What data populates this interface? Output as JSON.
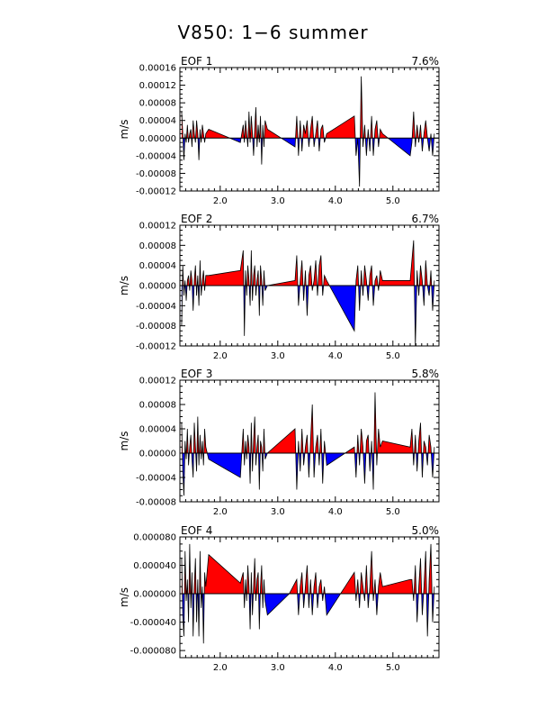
{
  "title": "V850: 1−6 summer",
  "colors": {
    "positive": "#ff0000",
    "negative": "#0000ff",
    "line": "#000000"
  },
  "chart_data": [
    {
      "type": "area",
      "panel_label": "EOF 1",
      "variance": "7.6%",
      "ylabel": "m/s",
      "xlim": [
        1.3,
        5.8
      ],
      "ylim": [
        -0.00012,
        0.00016
      ],
      "yticks": [
        -0.00012,
        -8e-05,
        -4e-05,
        0.0,
        4e-05,
        8e-05,
        0.00012,
        0.00016
      ],
      "ytick_labels": [
        "-0.00012",
        "-0.00008",
        "-0.00004",
        "0.00000",
        "0.00004",
        "0.00008",
        "0.00012",
        "0.00016"
      ],
      "xticks": [
        2.0,
        3.0,
        4.0,
        5.0
      ],
      "xtick_labels": [
        "2.0",
        "3.0",
        "4.0",
        "5.0"
      ],
      "x": [
        1.33,
        1.35,
        1.37,
        1.39,
        1.41,
        1.43,
        1.45,
        1.47,
        1.49,
        1.51,
        1.53,
        1.55,
        1.57,
        1.59,
        1.61,
        1.63,
        1.65,
        1.67,
        1.69,
        1.71,
        1.73,
        1.75,
        1.8,
        2.35,
        2.4,
        2.42,
        2.44,
        2.46,
        2.48,
        2.5,
        2.52,
        2.54,
        2.56,
        2.58,
        2.6,
        2.62,
        2.64,
        2.66,
        2.68,
        2.7,
        2.72,
        2.74,
        2.76,
        2.78,
        2.82,
        3.3,
        3.33,
        3.36,
        3.39,
        3.42,
        3.45,
        3.48,
        3.51,
        3.54,
        3.57,
        3.6,
        3.63,
        3.66,
        3.69,
        3.72,
        3.75,
        3.78,
        3.81,
        3.85,
        4.33,
        4.36,
        4.39,
        4.42,
        4.45,
        4.48,
        4.51,
        4.54,
        4.57,
        4.6,
        4.63,
        4.66,
        4.69,
        4.72,
        4.75,
        4.78,
        4.82,
        5.3,
        5.33,
        5.36,
        5.39,
        5.42,
        5.45,
        5.48,
        5.51,
        5.54,
        5.57,
        5.6,
        5.63,
        5.66,
        5.69,
        5.72
      ],
      "values": [
        6e-05,
        1e-05,
        -5e-05,
        1e-05,
        -1e-05,
        3e-05,
        -1e-05,
        1e-05,
        2e-05,
        -2e-05,
        4e-05,
        1e-05,
        -1e-05,
        4e-05,
        1e-05,
        -5e-05,
        2e-05,
        -1e-05,
        3e-05,
        1e-05,
        -1e-05,
        1e-05,
        2e-05,
        -1e-05,
        3e-05,
        -1e-05,
        4e-05,
        1e-05,
        -2e-05,
        6e-05,
        -1e-05,
        5e-05,
        1e-05,
        -4e-05,
        2e-05,
        7e-05,
        -2e-05,
        3e-05,
        -1e-05,
        5e-05,
        -6e-05,
        3e-05,
        -2e-05,
        4e-05,
        2e-05,
        -2e-05,
        5e-05,
        -4e-05,
        4e-05,
        -3e-05,
        3e-05,
        1e-05,
        4e-05,
        -2e-05,
        2e-05,
        5e-05,
        -2e-05,
        1e-05,
        4e-05,
        -3e-05,
        2e-05,
        3e-05,
        -1e-05,
        1e-05,
        5e-05,
        -4e-05,
        0.0,
        -0.00011,
        0.00014,
        -2e-05,
        3e-05,
        -4e-05,
        2e-05,
        -3e-05,
        5e-05,
        -4e-05,
        2e-05,
        4e-05,
        -2e-05,
        2e-05,
        1e-05,
        -4e-05,
        -1e-05,
        6e-05,
        -2e-05,
        3e-05,
        -1e-05,
        3e-05,
        -3e-05,
        1e-05,
        4e-05,
        0.0,
        -3e-05,
        1e-05,
        -4e-05,
        1e-05
      ]
    },
    {
      "type": "area",
      "panel_label": "EOF 2",
      "variance": "6.7%",
      "ylabel": "m/s",
      "xlim": [
        1.3,
        5.8
      ],
      "ylim": [
        -0.00012,
        0.00012
      ],
      "yticks": [
        -0.00012,
        -8e-05,
        -4e-05,
        0.0,
        4e-05,
        8e-05,
        0.00012
      ],
      "ytick_labels": [
        "-0.00012",
        "-0.00008",
        "-0.00004",
        "0.00000",
        "0.00004",
        "0.00008",
        "0.00012"
      ],
      "xticks": [
        2.0,
        3.0,
        4.0,
        5.0
      ],
      "xtick_labels": [
        "2.0",
        "3.0",
        "4.0",
        "5.0"
      ],
      "x": [
        1.33,
        1.35,
        1.37,
        1.39,
        1.41,
        1.43,
        1.45,
        1.47,
        1.49,
        1.51,
        1.53,
        1.55,
        1.57,
        1.59,
        1.61,
        1.63,
        1.65,
        1.67,
        1.69,
        1.71,
        1.73,
        1.75,
        1.8,
        2.35,
        2.4,
        2.42,
        2.44,
        2.46,
        2.48,
        2.5,
        2.52,
        2.54,
        2.56,
        2.58,
        2.6,
        2.62,
        2.64,
        2.66,
        2.68,
        2.7,
        2.72,
        2.74,
        2.76,
        2.78,
        2.82,
        3.3,
        3.33,
        3.36,
        3.39,
        3.42,
        3.45,
        3.48,
        3.51,
        3.54,
        3.57,
        3.6,
        3.63,
        3.66,
        3.69,
        3.72,
        3.75,
        3.78,
        3.81,
        3.85,
        4.33,
        4.36,
        4.39,
        4.42,
        4.45,
        4.48,
        4.51,
        4.54,
        4.57,
        4.6,
        4.63,
        4.66,
        4.69,
        4.72,
        4.75,
        4.78,
        4.82,
        5.3,
        5.33,
        5.36,
        5.39,
        5.42,
        5.45,
        5.48,
        5.51,
        5.54,
        5.57,
        5.6,
        5.63,
        5.66,
        5.69,
        5.72
      ],
      "values": [
        -8e-05,
        4e-05,
        -2e-05,
        1e-05,
        -3e-05,
        1e-05,
        2e-05,
        -1e-05,
        3e-05,
        1e-05,
        -5e-05,
        1e-05,
        4e-05,
        -2e-05,
        2e-05,
        -4e-05,
        5e-05,
        -2e-05,
        1e-05,
        3e-05,
        -1e-05,
        2e-05,
        2e-05,
        3e-05,
        7e-05,
        -0.0001,
        3e-05,
        -2e-05,
        4e-05,
        1e-05,
        -4e-05,
        7e-05,
        -3e-05,
        2e-05,
        4e-05,
        -2e-05,
        1e-05,
        3e-05,
        -6e-05,
        4e-05,
        1e-05,
        -4e-05,
        3e-05,
        -1e-05,
        0.0,
        1e-05,
        6e-05,
        -4e-05,
        1e-05,
        5e-05,
        -3e-05,
        3e-05,
        -6e-05,
        2e-05,
        4e-05,
        -1e-05,
        1e-05,
        5e-05,
        -2e-05,
        4e-05,
        6e-05,
        -2e-05,
        2e-05,
        1e-05,
        -9e-05,
        1e-05,
        4e-05,
        -5e-05,
        3e-05,
        -2e-05,
        4e-05,
        1e-05,
        -3e-05,
        2e-05,
        4e-05,
        -4e-05,
        1e-05,
        2e-05,
        -1e-05,
        3e-05,
        1e-05,
        1e-05,
        5e-05,
        9e-05,
        -0.00012,
        3e-05,
        -2e-05,
        4e-05,
        1e-05,
        -4e-05,
        5e-05,
        0.0,
        -2e-05,
        3e-05,
        -5e-05,
        1e-05
      ]
    },
    {
      "type": "area",
      "panel_label": "EOF 3",
      "variance": "5.8%",
      "ylabel": "m/s",
      "xlim": [
        1.3,
        5.8
      ],
      "ylim": [
        -8e-05,
        0.00012
      ],
      "yticks": [
        -8e-05,
        -4e-05,
        0.0,
        4e-05,
        8e-05,
        0.00012
      ],
      "ytick_labels": [
        "-0.00008",
        "-0.00004",
        "0.00000",
        "0.00004",
        "0.00008",
        "0.00012"
      ],
      "xticks": [
        2.0,
        3.0,
        4.0,
        5.0
      ],
      "xtick_labels": [
        "2.0",
        "3.0",
        "4.0",
        "5.0"
      ],
      "x": [
        1.33,
        1.35,
        1.37,
        1.39,
        1.41,
        1.43,
        1.45,
        1.47,
        1.49,
        1.51,
        1.53,
        1.55,
        1.57,
        1.59,
        1.61,
        1.63,
        1.65,
        1.67,
        1.69,
        1.71,
        1.73,
        1.75,
        1.8,
        2.35,
        2.4,
        2.42,
        2.44,
        2.46,
        2.48,
        2.5,
        2.52,
        2.54,
        2.56,
        2.58,
        2.6,
        2.62,
        2.64,
        2.66,
        2.68,
        2.7,
        2.72,
        2.74,
        2.76,
        2.78,
        2.82,
        3.3,
        3.33,
        3.36,
        3.39,
        3.42,
        3.45,
        3.48,
        3.51,
        3.54,
        3.57,
        3.6,
        3.63,
        3.66,
        3.69,
        3.72,
        3.75,
        3.78,
        3.81,
        3.85,
        4.33,
        4.36,
        4.39,
        4.42,
        4.45,
        4.48,
        4.51,
        4.54,
        4.57,
        4.6,
        4.63,
        4.66,
        4.69,
        4.72,
        4.75,
        4.78,
        4.82,
        5.3,
        5.33,
        5.36,
        5.39,
        5.42,
        5.45,
        5.48,
        5.51,
        5.54,
        5.57,
        5.6,
        5.63,
        5.66,
        5.69,
        5.72
      ],
      "values": [
        5e-05,
        -3e-05,
        -7e-05,
        2e-05,
        -1e-05,
        4e-05,
        -2e-05,
        1e-05,
        3e-05,
        -1e-05,
        -4e-05,
        5e-05,
        1e-05,
        -3e-05,
        6e-05,
        -2e-05,
        3e-05,
        -1e-05,
        2e-05,
        -2e-05,
        4e-05,
        1e-05,
        -1e-05,
        -4e-05,
        4e-05,
        -2e-05,
        2e-05,
        -1e-05,
        3e-05,
        1e-05,
        -5e-05,
        5e-05,
        -3e-05,
        2e-05,
        6e-05,
        -2e-05,
        1e-05,
        3e-05,
        -6e-05,
        2e-05,
        1e-05,
        -3e-05,
        4e-05,
        -1e-05,
        0.0,
        4e-05,
        -6e-05,
        2e-05,
        -3e-05,
        4e-05,
        -2e-05,
        1e-05,
        3e-05,
        -4e-05,
        2e-05,
        8e-05,
        -4e-05,
        1e-05,
        3e-05,
        -2e-05,
        4e-05,
        -5e-05,
        2e-05,
        -2e-05,
        1e-05,
        -4e-05,
        3e-05,
        -2e-05,
        4e-05,
        1e-05,
        -5e-05,
        2e-05,
        3e-05,
        -3e-05,
        2e-05,
        -6e-05,
        0.0001,
        -2e-05,
        4e-05,
        1e-05,
        2e-05,
        1e-05,
        4e-05,
        -2e-05,
        3e-05,
        -3e-05,
        2e-05,
        5e-05,
        -4e-05,
        2e-05,
        1e-05,
        -2e-05,
        3e-05,
        1e-05,
        -4e-05,
        1e-05
      ]
    },
    {
      "type": "area",
      "panel_label": "EOF 4",
      "variance": "5.0%",
      "ylabel": "m/s",
      "xlim": [
        1.3,
        5.8
      ],
      "ylim": [
        -9e-05,
        8e-05
      ],
      "yticks": [
        -8e-05,
        -4e-05,
        0.0,
        4e-05,
        8e-05
      ],
      "ytick_labels": [
        "-0.000080",
        "-0.000040",
        "0.000000",
        "0.000040",
        "0.000080"
      ],
      "xticks": [
        2.0,
        3.0,
        4.0,
        5.0
      ],
      "xtick_labels": [
        "2.0",
        "3.0",
        "4.0",
        "5.0"
      ],
      "x": [
        1.33,
        1.35,
        1.37,
        1.39,
        1.41,
        1.43,
        1.45,
        1.47,
        1.49,
        1.51,
        1.53,
        1.55,
        1.57,
        1.59,
        1.61,
        1.63,
        1.65,
        1.67,
        1.69,
        1.71,
        1.73,
        1.75,
        1.8,
        2.35,
        2.4,
        2.42,
        2.44,
        2.46,
        2.48,
        2.5,
        2.52,
        2.54,
        2.56,
        2.58,
        2.6,
        2.62,
        2.64,
        2.66,
        2.68,
        2.7,
        2.72,
        2.74,
        2.76,
        2.78,
        2.82,
        3.2,
        3.33,
        3.36,
        3.39,
        3.42,
        3.45,
        3.48,
        3.51,
        3.54,
        3.57,
        3.6,
        3.63,
        3.66,
        3.69,
        3.72,
        3.75,
        3.78,
        3.81,
        3.85,
        4.33,
        4.36,
        4.39,
        4.42,
        4.45,
        4.48,
        4.51,
        4.54,
        4.57,
        4.6,
        4.63,
        4.66,
        4.69,
        4.72,
        4.75,
        4.78,
        4.82,
        5.3,
        5.33,
        5.36,
        5.39,
        5.42,
        5.45,
        5.48,
        5.51,
        5.54,
        5.57,
        5.6,
        5.63,
        5.66,
        5.69,
        5.72
      ],
      "values": [
        5e-05,
        -3e-05,
        -6e-05,
        6e-05,
        -1e-05,
        2e-05,
        -4e-05,
        7e-05,
        -2e-05,
        3e-05,
        -6e-05,
        1e-05,
        5e-05,
        -4e-05,
        2e-05,
        -6e-05,
        6e-05,
        -2e-05,
        1e-05,
        -7e-05,
        3e-05,
        1e-05,
        5.5e-05,
        1.5e-05,
        3e-05,
        -2e-05,
        2e-05,
        -1e-05,
        4e-05,
        1e-05,
        -5e-05,
        3e-05,
        -3e-05,
        1e-05,
        5e-05,
        -1e-05,
        2e-05,
        3e-05,
        -5e-05,
        1e-05,
        4e-05,
        -2e-05,
        2e-05,
        -1e-05,
        -3e-05,
        0.0,
        2e-05,
        -3e-05,
        1e-05,
        3e-05,
        -2e-05,
        1e-05,
        4e-05,
        -2e-05,
        2e-05,
        -3e-05,
        1e-05,
        3e-05,
        -2e-05,
        1e-05,
        2e-05,
        -1e-05,
        1e-05,
        -3e-05,
        3e-05,
        -1e-05,
        2e-05,
        -2e-05,
        3e-05,
        1e-05,
        -1e-05,
        4e-05,
        -2e-05,
        1e-05,
        6e-05,
        -1e-05,
        2e-05,
        -3e-05,
        1e-05,
        3e-05,
        1e-05,
        2e-05,
        2e-05,
        -1e-05,
        4e-05,
        -4e-05,
        1e-05,
        5e-05,
        -3e-05,
        1e-05,
        6e-05,
        -6e-05,
        2e-05,
        7e-05,
        -4e-05,
        1e-05
      ]
    }
  ]
}
